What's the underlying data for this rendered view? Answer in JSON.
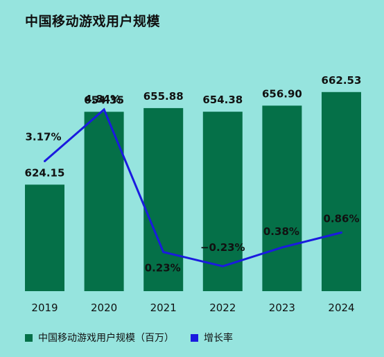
{
  "title": "中国移动游戏用户规模",
  "chart_data": {
    "type": "bar",
    "categories": [
      "2019",
      "2020",
      "2021",
      "2022",
      "2023",
      "2024"
    ],
    "series": [
      {
        "name": "中国移动游戏用户规模（百万）",
        "type": "bar",
        "color": "#057048",
        "values": [
          624.15,
          654.35,
          655.88,
          654.38,
          656.9,
          662.53
        ],
        "labels": [
          "624.15",
          "654.35",
          "655.88",
          "654.38",
          "656.90",
          "662.53"
        ]
      },
      {
        "name": "增长率",
        "type": "line",
        "color": "#1a1adf",
        "values": [
          3.17,
          4.84,
          0.23,
          -0.23,
          0.38,
          0.86
        ],
        "labels": [
          "3.17%",
          "4.84%",
          "0.23%",
          "−0.23%",
          "0.38%",
          "0.86%"
        ]
      }
    ],
    "legend_position": "bottom-left",
    "grid": false
  }
}
